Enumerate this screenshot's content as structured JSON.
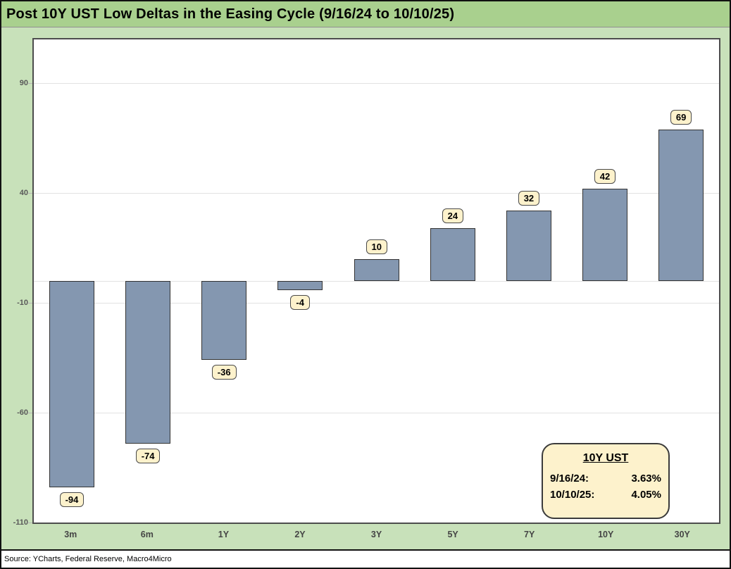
{
  "title": "Post 10Y UST Low Deltas in the Easing Cycle (9/16/24 to 10/10/25)",
  "source": "Source: YCharts, Federal Reserve, Macro4Micro",
  "callout": {
    "title": "10Y UST",
    "rows": [
      {
        "label": "9/16/24:",
        "value": "3.63%"
      },
      {
        "label": "10/10/25:",
        "value": "4.05%"
      }
    ]
  },
  "colors": {
    "title_bar_green": "#A9D08E",
    "background_green": "#C8E1BA",
    "bar_fill": "#8497B0",
    "bar_border": "#333333",
    "data_label_bg": "#FDF2CC",
    "data_label_border": "#4a4a4a",
    "gridline": "#E2E2E2",
    "plot_border": "#4D4D4D",
    "axis_label_gray": "#595959"
  },
  "chart_data": {
    "type": "bar",
    "title": "Post 10Y UST Low Deltas in the Easing Cycle (9/16/24 to 10/10/25)",
    "categories": [
      "3m",
      "6m",
      "1Y",
      "2Y",
      "3Y",
      "5Y",
      "7Y",
      "10Y",
      "30Y"
    ],
    "values": [
      -94,
      -74,
      -36,
      -4,
      10,
      24,
      32,
      42,
      69
    ],
    "xlabel": "",
    "ylabel": "",
    "ylim": [
      -110,
      110
    ],
    "yticks": [
      90,
      40,
      -10,
      -60,
      -110
    ],
    "grid": true,
    "legend_position": "bottom-right-callout",
    "data_labels": true
  }
}
